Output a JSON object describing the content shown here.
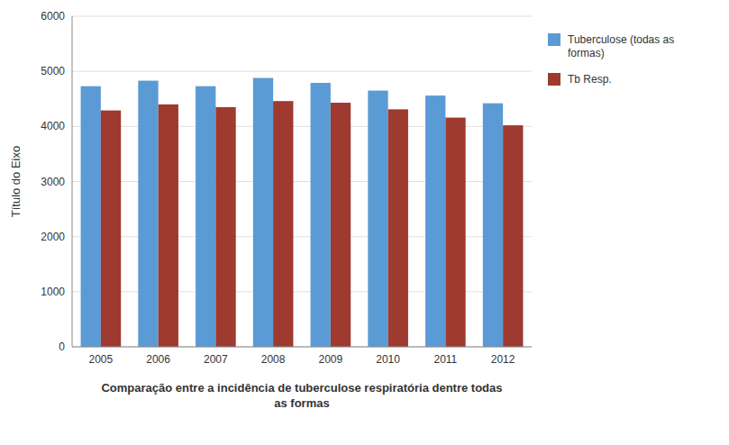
{
  "chart_data": {
    "type": "bar",
    "categories": [
      "2005",
      "2006",
      "2007",
      "2008",
      "2009",
      "2010",
      "2011",
      "2012"
    ],
    "series": [
      {
        "name": "Tuberculose (todas as\nformas)",
        "color": "#5B9BD5",
        "values": [
          4730,
          4830,
          4730,
          4880,
          4790,
          4650,
          4560,
          4420
        ]
      },
      {
        "name": "Tb Resp.",
        "color": "#9E3A2F",
        "values": [
          4290,
          4400,
          4350,
          4460,
          4430,
          4310,
          4160,
          4020
        ]
      }
    ],
    "xlabel": "Comparação entre a incidência de tuberculose respiratória dentre todas\nas formas",
    "ylabel": "Título do Eixo",
    "ylim": [
      0,
      6000
    ],
    "yticks": [
      0,
      1000,
      2000,
      3000,
      4000,
      5000,
      6000
    ],
    "grid": true,
    "legend": "right"
  }
}
